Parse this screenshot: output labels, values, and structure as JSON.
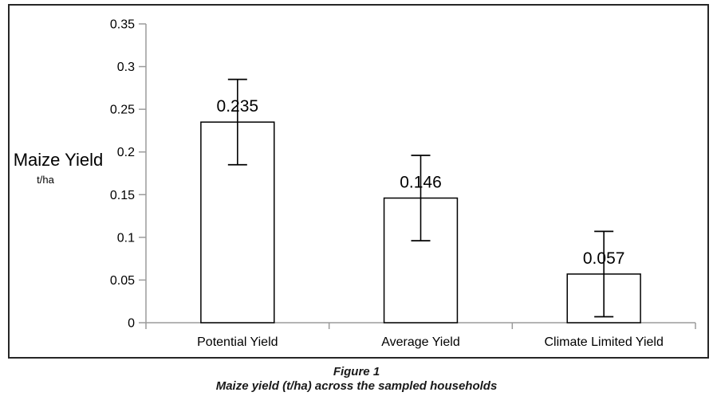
{
  "figure": {
    "ylabel_line1": "Maize Yield",
    "ylabel_line2": "t/ha"
  },
  "caption": {
    "title": "Figure 1",
    "subtitle": "Maize yield (t/ha) across the sampled households"
  },
  "chart_data": {
    "type": "bar",
    "categories": [
      "Potential Yield",
      "Average Yield",
      "Climate Limited Yield"
    ],
    "values": [
      0.235,
      0.146,
      0.057
    ],
    "value_labels": [
      "0.235",
      "0.146",
      "0.057"
    ],
    "errors": [
      0.05,
      0.05,
      0.05
    ],
    "title": "",
    "xlabel": "",
    "ylabel": "Maize Yield (t/ha)",
    "ylim": [
      0,
      0.35
    ],
    "ytick_step": 0.05,
    "ytick_labels": [
      "0",
      "0.05",
      "0.1",
      "0.15",
      "0.2",
      "0.25",
      "0.3",
      "0.35"
    ],
    "grid": false,
    "legend": false,
    "colors": {
      "bar_fill": "#ffffff",
      "bar_border": "#000000",
      "error_bar": "#000000",
      "axis_line": "#9b9b9b",
      "panel_border": "#262626",
      "text": "#000000"
    }
  }
}
